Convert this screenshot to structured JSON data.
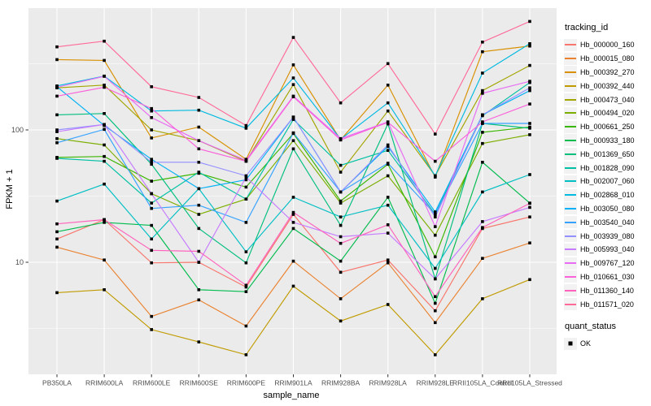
{
  "style": {
    "panel_bg": "#EBEBEB",
    "grid_color": "#FFFFFF",
    "key_bg": "#F2F2F2",
    "tick_mark_color": "#333333",
    "tick_label_color": "#4D4D4D",
    "point_color": "#000000"
  },
  "chart_data": {
    "type": "line",
    "xlabel": "sample_name",
    "ylabel": "FPKM + 1",
    "yscale": "log10",
    "ylim": [
      1.4,
      830
    ],
    "grid": true,
    "legend_position": "right",
    "point_shape": "filled-black-square",
    "y_ticks": [
      {
        "label": "100",
        "value": 100
      },
      {
        "label": "10",
        "value": 10
      }
    ],
    "y_minor": [
      316.23,
      31.62,
      3.162
    ],
    "categories": [
      "PB350LA",
      "RRIM600LA",
      "RRIM600LE",
      "RRIM600SE",
      "RRIM600PE",
      "RRIM901LA",
      "RRIM928BA",
      "RRIM928LA",
      "RRIM928LE",
      "RRII105LA_Control",
      "RRII105LA_Stressed"
    ],
    "series": [
      {
        "name": "Hb_000000_160",
        "color": "#F8766D",
        "values": [
          15,
          21,
          9.9,
          10,
          6.5,
          23,
          8.4,
          10.4,
          4.3,
          18,
          22
        ]
      },
      {
        "name": "Hb_000015_080",
        "color": "#EA8331",
        "values": [
          13,
          10.4,
          3.9,
          5.2,
          3.3,
          10.2,
          5.3,
          9.9,
          3.5,
          10.7,
          14
        ]
      },
      {
        "name": "Hb_000392_270",
        "color": "#D89000",
        "values": [
          340,
          335,
          87,
          105,
          60,
          310,
          84,
          218,
          44,
          390,
          430
        ]
      },
      {
        "name": "Hb_000392_440",
        "color": "#C09B00",
        "values": [
          5.9,
          6.2,
          3.1,
          2.5,
          2.0,
          6.6,
          3.6,
          4.8,
          2.0,
          5.3,
          7.4
        ]
      },
      {
        "name": "Hb_000473_040",
        "color": "#A3A500",
        "values": [
          208,
          218,
          100,
          83,
          58,
          220,
          48,
          139,
          45,
          198,
          307
        ]
      },
      {
        "name": "Hb_000494_020",
        "color": "#7CAE00",
        "values": [
          86,
          77,
          33,
          23,
          30,
          83,
          28,
          45,
          16,
          79,
          92
        ]
      },
      {
        "name": "Hb_000661_250",
        "color": "#39B600",
        "values": [
          62,
          63,
          41,
          47,
          37,
          94,
          29,
          55,
          11,
          96,
          105
        ]
      },
      {
        "name": "Hb_000933_180",
        "color": "#00BB4E",
        "values": [
          17,
          20,
          19,
          6.2,
          6.0,
          18,
          10.2,
          31,
          4.9,
          57,
          28
        ]
      },
      {
        "name": "Hb_001369_650",
        "color": "#00BF7D",
        "values": [
          130,
          133,
          55,
          18,
          9.9,
          72,
          19,
          111,
          7.5,
          112,
          103
        ]
      },
      {
        "name": "Hb_001828_090",
        "color": "#00C1A3",
        "values": [
          61,
          58,
          28,
          48,
          30,
          120,
          54,
          70,
          23,
          128,
          228
        ]
      },
      {
        "name": "Hb_002007_060",
        "color": "#00BFC4",
        "values": [
          29,
          39,
          15,
          36,
          12,
          31,
          22,
          27,
          9,
          34,
          46
        ]
      },
      {
        "name": "Hb_002868_010",
        "color": "#00BAE0",
        "values": [
          215,
          255,
          139,
          141,
          103,
          247,
          85,
          160,
          45,
          269,
          448
        ]
      },
      {
        "name": "Hb_003050_080",
        "color": "#00B0F6",
        "values": [
          212,
          108,
          60,
          36,
          42,
          125,
          34,
          75,
          24,
          130,
          198
        ]
      },
      {
        "name": "Hb_003540_040",
        "color": "#35A2FF",
        "values": [
          80,
          101,
          25.5,
          27,
          20,
          95,
          34,
          56,
          23,
          112,
          112
        ]
      },
      {
        "name": "Hb_003939_080",
        "color": "#9590FF",
        "values": [
          100,
          110,
          57,
          57,
          45,
          125,
          34,
          77,
          22,
          130,
          208
        ]
      },
      {
        "name": "Hb_005993_040",
        "color": "#C77CFF",
        "values": [
          97,
          110,
          33,
          10,
          44,
          20,
          15.6,
          16.6,
          7.5,
          20.3,
          26
        ]
      },
      {
        "name": "Hb_009767_120",
        "color": "#E76BF3",
        "values": [
          210,
          254,
          124,
          83,
          59,
          180,
          86,
          115,
          18.6,
          189,
          233
        ]
      },
      {
        "name": "Hb_010661_030",
        "color": "#FA62DB",
        "values": [
          180,
          210,
          145,
          72,
          58,
          178,
          84,
          114,
          58,
          115,
          157
        ]
      },
      {
        "name": "Hb_011360_140",
        "color": "#FF62BC",
        "values": [
          19.5,
          21,
          12.3,
          12.1,
          6.7,
          23.8,
          13.9,
          19.2,
          5.5,
          18.3,
          27.9
        ]
      },
      {
        "name": "Hb_011571_020",
        "color": "#FF6A98",
        "values": [
          424,
          468,
          212,
          176,
          108,
          500,
          160,
          317,
          93,
          461,
          660
        ]
      }
    ],
    "legend": {
      "tracking_title": "tracking_id",
      "quant_title": "quant_status",
      "quant_items": [
        "OK"
      ]
    }
  }
}
